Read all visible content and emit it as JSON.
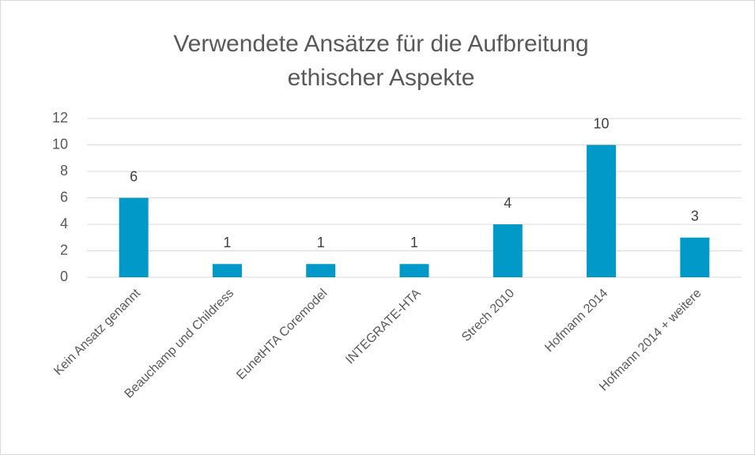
{
  "chart_data": {
    "type": "bar",
    "title": [
      "Verwendete Ansätze für die Aufbreitung",
      "ethischer Aspekte"
    ],
    "categories": [
      "Kein Ansatz genannt",
      "Beauchamp und Childress",
      "EunetHTA Coremodel",
      "INTEGRATE-HTA",
      "Strech 2010",
      "Hofmann 2014",
      "Hofmann 2014 + weitere"
    ],
    "values": [
      6,
      1,
      1,
      1,
      4,
      10,
      3
    ],
    "color": "#0099c8",
    "ylim": [
      0,
      12
    ],
    "yticks": [
      0,
      2,
      4,
      6,
      8,
      10,
      12
    ],
    "grid": true
  }
}
